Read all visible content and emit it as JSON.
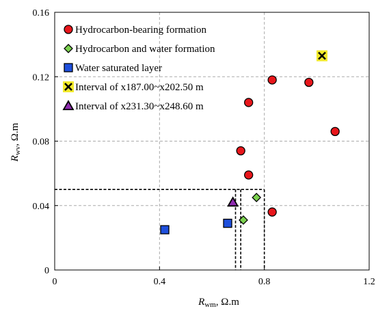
{
  "chart_data": {
    "type": "scatter",
    "title": "",
    "xlabel": {
      "main": "R",
      "sub": "wm",
      "unit": ", Ω.m"
    },
    "ylabel": {
      "main": "R",
      "sub": "wv",
      "unit": ", Ω.m"
    },
    "xlim": [
      0,
      1.2
    ],
    "ylim": [
      0,
      0.16
    ],
    "xticks": [
      0,
      0.4,
      0.8,
      1.2
    ],
    "yticks": [
      0,
      0.04,
      0.08,
      0.12,
      0.16
    ],
    "xtick_labels": [
      "0",
      "0.4",
      "0.8",
      "1.2"
    ],
    "ytick_labels": [
      "0",
      "0.04",
      "0.08",
      "0.12",
      "0.16"
    ],
    "grid": true,
    "legend_position": "top-left",
    "series": [
      {
        "name": "Hydrocarbon-bearing formation",
        "marker": "circle",
        "color": "#e8161b",
        "points": [
          [
            0.74,
            0.104
          ],
          [
            0.83,
            0.118
          ],
          [
            0.97,
            0.1165
          ],
          [
            1.07,
            0.086
          ],
          [
            0.71,
            0.074
          ],
          [
            0.74,
            0.059
          ],
          [
            0.83,
            0.036
          ]
        ]
      },
      {
        "name": "Hydrocarbon and water formation",
        "marker": "diamond",
        "color": "#7bd14f",
        "points": [
          [
            0.77,
            0.045
          ],
          [
            0.72,
            0.031
          ]
        ]
      },
      {
        "name": "Water saturated layer",
        "marker": "square",
        "color": "#1e4fdc",
        "points": [
          [
            0.42,
            0.025
          ],
          [
            0.66,
            0.029
          ]
        ]
      },
      {
        "name": "Interval of x187.00~x202.50 m",
        "marker": "x-square",
        "color": "#f2ea2c",
        "points": [
          [
            1.02,
            0.133
          ]
        ]
      },
      {
        "name": "Interval of x231.30~x248.60 m",
        "marker": "triangle",
        "color": "#8f2bb0",
        "points": [
          [
            0.68,
            0.042
          ]
        ]
      }
    ],
    "reference_box": {
      "x_range": [
        0,
        0.8
      ],
      "y_range": [
        0,
        0.05
      ],
      "x_inner": 0.69,
      "x_inner2": 0.71
    }
  }
}
